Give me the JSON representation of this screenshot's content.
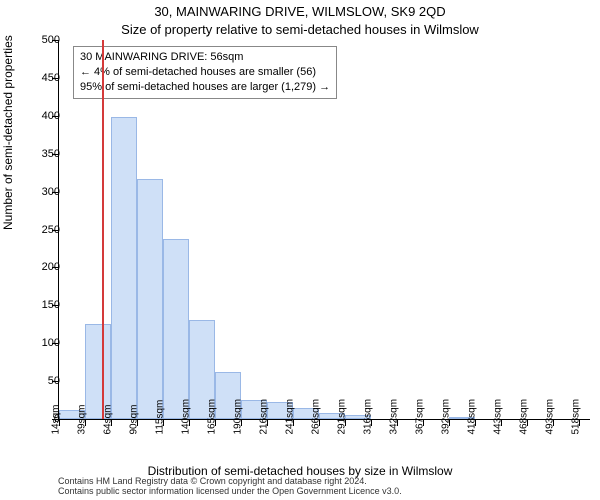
{
  "title_line1": "30, MAINWARING DRIVE, WILMSLOW, SK9 2QD",
  "title_line2": "Size of property relative to semi-detached houses in Wilmslow",
  "ylabel": "Number of semi-detached properties",
  "xlabel": "Distribution of semi-detached houses by size in Wilmslow",
  "footer_line1": "Contains HM Land Registry data © Crown copyright and database right 2024.",
  "footer_line2": "Contains public sector information licensed under the Open Government Licence v3.0.",
  "chart": {
    "type": "histogram",
    "background_color": "#ffffff",
    "axis_color": "#000000",
    "bar_fill": "#cfe0f7",
    "bar_stroke": "#9ab8e6",
    "marker_color": "#d43a3a",
    "ylim": [
      0,
      500
    ],
    "ytick_step": 50,
    "x_start": 14,
    "x_step": 25.26,
    "x_visible_max": 530,
    "x_labels": [
      "14sqm",
      "39sqm",
      "64sqm",
      "90sqm",
      "115sqm",
      "140sqm",
      "165sqm",
      "190sqm",
      "216sqm",
      "241sqm",
      "266sqm",
      "291sqm",
      "316sqm",
      "342sqm",
      "367sqm",
      "392sqm",
      "418sqm",
      "443sqm",
      "468sqm",
      "493sqm",
      "518sqm"
    ],
    "bars": [
      12,
      125,
      398,
      317,
      238,
      130,
      62,
      25,
      22,
      14,
      8,
      5,
      0,
      0,
      0,
      2,
      0,
      0,
      0,
      0,
      0
    ],
    "marker_x": 56,
    "annotation": {
      "line1": "30 MAINWARING DRIVE: 56sqm",
      "line2": "← 4% of semi-detached houses are smaller (56)",
      "line3": "95% of semi-detached houses are larger (1,279) →"
    },
    "fontsize_title": 13,
    "fontsize_axis_label": 12,
    "fontsize_tick": 11,
    "fontsize_xtick": 10,
    "fontsize_annotation": 11,
    "fontsize_footer": 9
  }
}
